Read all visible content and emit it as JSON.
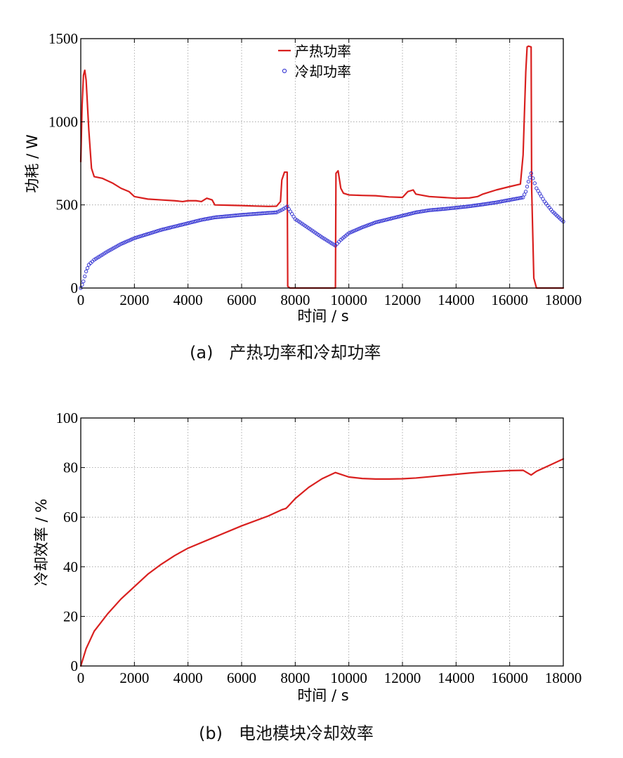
{
  "colors": {
    "heat": "#d9201f",
    "cool": "#2a2ad0",
    "grid": "#9a9a9a",
    "frame": "#000000"
  },
  "chart_data": [
    {
      "id": "a",
      "type": "line",
      "caption": "(a)   产热功率和冷却功率",
      "xlabel": "时间 / s",
      "ylabel": "功耗 / W",
      "xlim": [
        0,
        18000
      ],
      "ylim": [
        0,
        1500
      ],
      "xticks": [
        0,
        2000,
        4000,
        6000,
        8000,
        10000,
        12000,
        14000,
        16000,
        18000
      ],
      "yticks": [
        0,
        500,
        1000,
        1500
      ],
      "grid": true,
      "legend_position": "top-center",
      "series": [
        {
          "name": "产热功率",
          "style": "line",
          "color": "#d9201f",
          "points": [
            [
              0,
              760
            ],
            [
              50,
              1100
            ],
            [
              100,
              1280
            ],
            [
              150,
              1310
            ],
            [
              200,
              1250
            ],
            [
              300,
              950
            ],
            [
              400,
              720
            ],
            [
              500,
              670
            ],
            [
              800,
              660
            ],
            [
              1200,
              630
            ],
            [
              1500,
              600
            ],
            [
              1800,
              580
            ],
            [
              2000,
              550
            ],
            [
              2500,
              535
            ],
            [
              3000,
              530
            ],
            [
              3500,
              525
            ],
            [
              3800,
              520
            ],
            [
              4000,
              525
            ],
            [
              4300,
              525
            ],
            [
              4500,
              520
            ],
            [
              4700,
              540
            ],
            [
              4900,
              530
            ],
            [
              5000,
              500
            ],
            [
              5500,
              498
            ],
            [
              6000,
              496
            ],
            [
              6500,
              493
            ],
            [
              7000,
              491
            ],
            [
              7300,
              492
            ],
            [
              7450,
              520
            ],
            [
              7500,
              650
            ],
            [
              7600,
              697
            ],
            [
              7700,
              697
            ],
            [
              7720,
              10
            ],
            [
              7800,
              0
            ],
            [
              9500,
              0
            ],
            [
              9520,
              690
            ],
            [
              9600,
              705
            ],
            [
              9700,
              600
            ],
            [
              9800,
              570
            ],
            [
              10000,
              560
            ],
            [
              10500,
              557
            ],
            [
              11000,
              555
            ],
            [
              11500,
              548
            ],
            [
              12000,
              545
            ],
            [
              12200,
              580
            ],
            [
              12400,
              590
            ],
            [
              12500,
              565
            ],
            [
              13000,
              550
            ],
            [
              13500,
              545
            ],
            [
              14000,
              540
            ],
            [
              14500,
              542
            ],
            [
              14800,
              550
            ],
            [
              15000,
              565
            ],
            [
              15500,
              590
            ],
            [
              16000,
              610
            ],
            [
              16400,
              625
            ],
            [
              16500,
              800
            ],
            [
              16600,
              1300
            ],
            [
              16650,
              1450
            ],
            [
              16700,
              1455
            ],
            [
              16800,
              1450
            ],
            [
              16820,
              600
            ],
            [
              16900,
              60
            ],
            [
              17000,
              0
            ],
            [
              18000,
              0
            ]
          ]
        },
        {
          "name": "冷却功率",
          "style": "markers",
          "color": "#2a2ad0",
          "points": [
            [
              0,
              0
            ],
            [
              100,
              40
            ],
            [
              200,
              100
            ],
            [
              300,
              140
            ],
            [
              500,
              170
            ],
            [
              1000,
              220
            ],
            [
              1500,
              265
            ],
            [
              2000,
              300
            ],
            [
              2500,
              325
            ],
            [
              3000,
              350
            ],
            [
              3500,
              370
            ],
            [
              4000,
              390
            ],
            [
              4500,
              410
            ],
            [
              5000,
              425
            ],
            [
              6000,
              440
            ],
            [
              7000,
              452
            ],
            [
              7300,
              455
            ],
            [
              7500,
              470
            ],
            [
              7700,
              490
            ],
            [
              8000,
              415
            ],
            [
              8500,
              360
            ],
            [
              9000,
              305
            ],
            [
              9500,
              255
            ],
            [
              9700,
              290
            ],
            [
              10000,
              330
            ],
            [
              10500,
              365
            ],
            [
              11000,
              395
            ],
            [
              11500,
              415
            ],
            [
              12000,
              435
            ],
            [
              12500,
              455
            ],
            [
              13000,
              468
            ],
            [
              13500,
              475
            ],
            [
              14000,
              483
            ],
            [
              14500,
              492
            ],
            [
              15000,
              503
            ],
            [
              15500,
              515
            ],
            [
              16000,
              530
            ],
            [
              16500,
              545
            ],
            [
              16600,
              580
            ],
            [
              16700,
              640
            ],
            [
              16800,
              690
            ],
            [
              17000,
              600
            ],
            [
              17300,
              520
            ],
            [
              17600,
              460
            ],
            [
              18000,
              400
            ]
          ]
        }
      ]
    },
    {
      "id": "b",
      "type": "line",
      "caption": "(b)   电池模块冷却效率",
      "xlabel": "时间 / s",
      "ylabel": "冷却效率 / %",
      "xlim": [
        0,
        18000
      ],
      "ylim": [
        0,
        100
      ],
      "xticks": [
        0,
        2000,
        4000,
        6000,
        8000,
        10000,
        12000,
        14000,
        16000,
        18000
      ],
      "yticks": [
        0,
        20,
        40,
        60,
        80,
        100
      ],
      "grid": true,
      "series": [
        {
          "name": "冷却效率",
          "style": "line",
          "color": "#d9201f",
          "points": [
            [
              0,
              0
            ],
            [
              200,
              7
            ],
            [
              500,
              14
            ],
            [
              1000,
              21
            ],
            [
              1500,
              27
            ],
            [
              2000,
              32
            ],
            [
              2500,
              37
            ],
            [
              3000,
              41
            ],
            [
              3500,
              44.5
            ],
            [
              4000,
              47.5
            ],
            [
              5000,
              52
            ],
            [
              6000,
              56.5
            ],
            [
              7000,
              60.5
            ],
            [
              7500,
              63
            ],
            [
              7650,
              63.5
            ],
            [
              7700,
              64
            ],
            [
              8000,
              67.5
            ],
            [
              8500,
              72
            ],
            [
              9000,
              75.5
            ],
            [
              9500,
              78
            ],
            [
              10000,
              76.2
            ],
            [
              10500,
              75.6
            ],
            [
              11000,
              75.4
            ],
            [
              11500,
              75.4
            ],
            [
              12000,
              75.5
            ],
            [
              12500,
              75.8
            ],
            [
              13000,
              76.3
            ],
            [
              13500,
              76.8
            ],
            [
              14000,
              77.3
            ],
            [
              14500,
              77.8
            ],
            [
              15000,
              78.2
            ],
            [
              15500,
              78.5
            ],
            [
              16000,
              78.8
            ],
            [
              16500,
              78.9
            ],
            [
              16800,
              77
            ],
            [
              17000,
              78.5
            ],
            [
              17500,
              81
            ],
            [
              18000,
              83.5
            ]
          ]
        }
      ]
    }
  ]
}
